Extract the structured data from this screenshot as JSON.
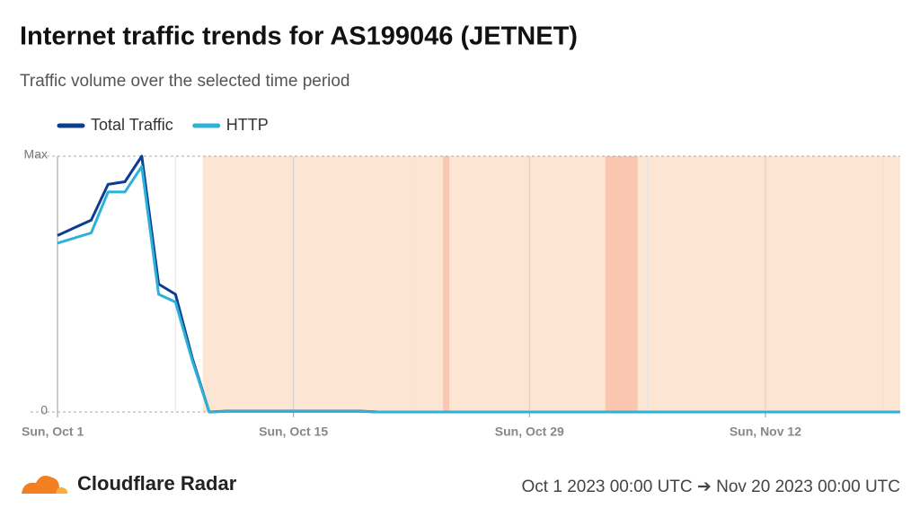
{
  "chart_data": {
    "type": "line",
    "title": "Internet traffic trends for AS199046 (JETNET)",
    "subtitle": "Traffic volume over the selected time period",
    "x": [
      "2023-10-01",
      "2023-10-02",
      "2023-10-03",
      "2023-10-04",
      "2023-10-05",
      "2023-10-06",
      "2023-10-07",
      "2023-10-08",
      "2023-10-09",
      "2023-10-10",
      "2023-10-11",
      "2023-10-12",
      "2023-10-13",
      "2023-10-14",
      "2023-10-15",
      "2023-10-16",
      "2023-10-17",
      "2023-10-18",
      "2023-10-19",
      "2023-10-20",
      "2023-10-21",
      "2023-10-22",
      "2023-10-23",
      "2023-10-24",
      "2023-10-25",
      "2023-10-26",
      "2023-10-27",
      "2023-10-28",
      "2023-10-29",
      "2023-10-30",
      "2023-10-31",
      "2023-11-01",
      "2023-11-02",
      "2023-11-03",
      "2023-11-04",
      "2023-11-05",
      "2023-11-06",
      "2023-11-07",
      "2023-11-08",
      "2023-11-09",
      "2023-11-10",
      "2023-11-11",
      "2023-11-12",
      "2023-11-13",
      "2023-11-14",
      "2023-11-15",
      "2023-11-16",
      "2023-11-17",
      "2023-11-18",
      "2023-11-19",
      "2023-11-20"
    ],
    "series": [
      {
        "name": "Total Traffic",
        "color": "#0b3d91",
        "values": [
          0.69,
          0.72,
          0.75,
          0.89,
          0.9,
          1,
          0.5,
          0.46,
          0.21,
          0,
          0.003,
          0.003,
          0.003,
          0.003,
          0.003,
          0.003,
          0.003,
          0.003,
          0.003,
          0,
          0,
          0,
          0,
          0,
          0,
          0,
          0,
          0,
          0,
          0,
          0,
          0,
          0,
          0,
          0,
          0,
          0,
          0,
          0,
          0,
          0,
          0,
          0,
          0,
          0,
          0,
          0,
          0,
          0,
          0,
          0
        ]
      },
      {
        "name": "HTTP",
        "color": "#2cb1d9",
        "values": [
          0.66,
          0.68,
          0.7,
          0.86,
          0.86,
          0.96,
          0.46,
          0.43,
          0.2,
          0,
          0.002,
          0.002,
          0.002,
          0.002,
          0.002,
          0.002,
          0.002,
          0.002,
          0.002,
          0,
          0,
          0,
          0,
          0,
          0,
          0,
          0,
          0,
          0,
          0,
          0,
          0,
          0,
          0,
          0,
          0,
          0,
          0,
          0,
          0,
          0,
          0,
          0,
          0,
          0,
          0,
          0,
          0,
          0,
          0,
          0
        ]
      }
    ],
    "xlim": [
      "2023-10-01",
      "2023-11-20"
    ],
    "xticks": [
      {
        "value": "2023-10-01",
        "label": "Sun, Oct 1"
      },
      {
        "value": "2023-10-15",
        "label": "Sun, Oct 15"
      },
      {
        "value": "2023-10-29",
        "label": "Sun, Oct 29"
      },
      {
        "value": "2023-11-12",
        "label": "Sun, Nov 12"
      }
    ],
    "xgrid_minor": [
      "2023-10-08",
      "2023-10-22",
      "2023-11-05",
      "2023-11-19"
    ],
    "ylim": [
      0,
      1
    ],
    "yticks": [
      0,
      {
        "value": 1,
        "label": "Max"
      }
    ],
    "shaded_ranges": [
      {
        "start": "2023-10-09T15:00",
        "end": "2023-11-20T00:00",
        "color": "#fde5d3"
      },
      {
        "start": "2023-10-23T21:00",
        "end": "2023-10-24T06:00",
        "color": "#fbc6b0"
      },
      {
        "start": "2023-11-02T12:00",
        "end": "2023-11-04T10:00",
        "color": "#fbc6b0"
      }
    ],
    "legend": "top-left"
  },
  "footer": {
    "brand": "Cloudflare Radar",
    "range": "Oct 1 2023 00:00 UTC ➔ Nov 20 2023 00:00 UTC"
  }
}
